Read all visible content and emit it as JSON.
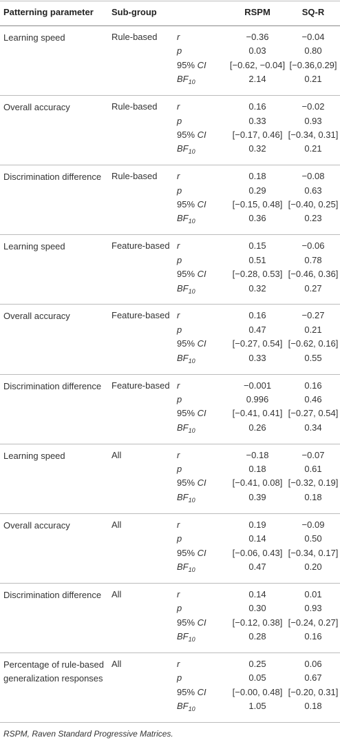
{
  "table": {
    "header": [
      "Patterning parameter",
      "Sub-group",
      "RSPM",
      "SQ-R"
    ],
    "stat_labels": [
      [
        {
          "text": "r",
          "italic": true
        }
      ],
      [
        {
          "text": "p",
          "italic": true
        }
      ],
      [
        {
          "text": "95% ",
          "italic": false
        },
        {
          "text": "CI",
          "italic": true
        }
      ],
      [
        {
          "text": "BF",
          "italic": true
        },
        {
          "text": "10",
          "italic": true,
          "sub": true
        }
      ]
    ],
    "rows": [
      {
        "parameter": "Learning speed",
        "subgroup": "Rule-based",
        "rspm": [
          "−0.36",
          "0.03",
          "[−0.62, −0.04]",
          "2.14"
        ],
        "sqr": [
          "−0.04",
          "0.80",
          "[−0.36,0.29]",
          "0.21"
        ]
      },
      {
        "parameter": "Overall accuracy",
        "subgroup": "Rule-based",
        "rspm": [
          "0.16",
          "0.33",
          "[−0.17, 0.46]",
          "0.32"
        ],
        "sqr": [
          "−0.02",
          "0.93",
          "[−0.34, 0.31]",
          "0.21"
        ]
      },
      {
        "parameter": "Discrimination difference",
        "subgroup": "Rule-based",
        "rspm": [
          "0.18",
          "0.29",
          "[−0.15, 0.48]",
          "0.36"
        ],
        "sqr": [
          "−0.08",
          "0.63",
          "[−0.40, 0.25]",
          "0.23"
        ]
      },
      {
        "parameter": "Learning speed",
        "subgroup": "Feature-based",
        "rspm": [
          "0.15",
          "0.51",
          "[−0.28, 0.53]",
          "0.32"
        ],
        "sqr": [
          "−0.06",
          "0.78",
          "[−0.46, 0.36]",
          "0.27"
        ]
      },
      {
        "parameter": "Overall accuracy",
        "subgroup": "Feature-based",
        "rspm": [
          "0.16",
          "0.47",
          "[−0.27, 0.54]",
          "0.33"
        ],
        "sqr": [
          "−0.27",
          "0.21",
          "[−0.62, 0.16]",
          "0.55"
        ]
      },
      {
        "parameter": "Discrimination difference",
        "subgroup": "Feature-based",
        "rspm": [
          "−0.001",
          "0.996",
          "[−0.41, 0.41]",
          "0.26"
        ],
        "sqr": [
          "0.16",
          "0.46",
          "[−0.27, 0.54]",
          "0.34"
        ]
      },
      {
        "parameter": "Learning speed",
        "subgroup": "All",
        "rspm": [
          "−0.18",
          "0.18",
          "[−0.41, 0.08]",
          "0.39"
        ],
        "sqr": [
          "−0.07",
          "0.61",
          "[−0.32, 0.19]",
          "0.18"
        ]
      },
      {
        "parameter": "Overall accuracy",
        "subgroup": "All",
        "rspm": [
          "0.19",
          "0.14",
          "[−0.06, 0.43]",
          "0.47"
        ],
        "sqr": [
          "−0.09",
          "0.50",
          "[−0.34, 0.17]",
          "0.20"
        ]
      },
      {
        "parameter": "Discrimination difference",
        "subgroup": "All",
        "rspm": [
          "0.14",
          "0.30",
          "[−0.12, 0.38]",
          "0.28"
        ],
        "sqr": [
          "0.01",
          "0.93",
          "[−0.24, 0.27]",
          "0.16"
        ]
      },
      {
        "parameter": "Percentage of rule-based generalization responses",
        "subgroup": "All",
        "rspm": [
          "0.25",
          "0.05",
          "[−0.00, 0.48]",
          "1.05"
        ],
        "sqr": [
          "0.06",
          "0.67",
          "[−0.20, 0.31]",
          "0.18"
        ]
      }
    ],
    "footnote": "RSPM, Raven Standard Progressive Matrices."
  }
}
